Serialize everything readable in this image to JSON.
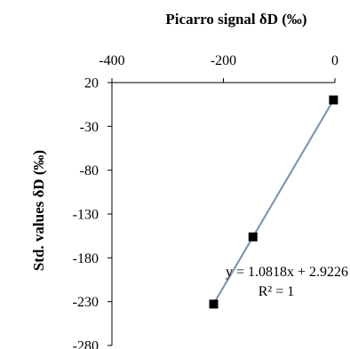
{
  "chart_data": {
    "type": "scatter",
    "title": "",
    "xlabel": "Picarro signal δD (‰)",
    "ylabel": "Std. values δD (‰)",
    "xlim": [
      -400,
      0
    ],
    "ylim": [
      -280,
      20
    ],
    "x_ticks": [
      -400,
      -200,
      0
    ],
    "y_ticks": [
      20,
      -30,
      -80,
      -130,
      -180,
      -230,
      -280
    ],
    "x_tick_labels": [
      "-400",
      "-200",
      "0"
    ],
    "y_tick_labels": [
      "20",
      "-30",
      "-80",
      "-130",
      "-180",
      "-230",
      "-280"
    ],
    "x_axis_position": "top",
    "y_axis_position": "left",
    "grid": false,
    "legend": "none",
    "series": [
      {
        "marker": "square",
        "color": "#000000",
        "points": [
          {
            "x": -2.5,
            "y": 0.2
          },
          {
            "x": -147.0,
            "y": -156.1
          },
          {
            "x": -217.5,
            "y": -232.8
          }
        ]
      }
    ],
    "trendline": {
      "type": "linear",
      "slope": 1.0818,
      "intercept": 2.9226,
      "x_range": [
        -217.5,
        -2.5
      ],
      "color": "#7f97b4"
    },
    "annotations": {
      "equation": "y = 1.0818x + 2.9226",
      "r_squared": "R² = 1"
    }
  }
}
